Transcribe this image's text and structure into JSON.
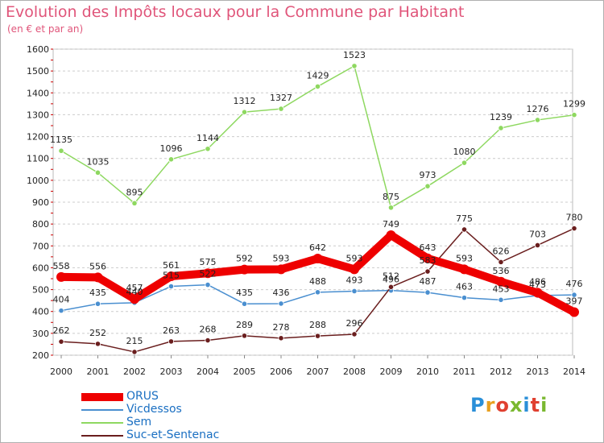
{
  "title": "Evolution des Impôts locaux pour la Commune par Habitant",
  "subtitle": "(en € et par an)",
  "logo": {
    "text": "Proxiti",
    "colors": [
      "#2a8fd8",
      "#e8a020",
      "#e04030",
      "#7ab830",
      "#2a8fd8",
      "#e04030",
      "#7ab830"
    ]
  },
  "colors": {
    "title": "#e0557a",
    "grid": "#cccccc",
    "axis_ticks": "#cc0000"
  },
  "chart_data": {
    "type": "line",
    "title": "Evolution des Impôts locaux pour la Commune par Habitant",
    "subtitle": "(en € et par an)",
    "xlabel": "",
    "ylabel": "",
    "categories": [
      "2000",
      "2001",
      "2002",
      "2003",
      "2004",
      "2005",
      "2006",
      "2007",
      "2008",
      "2009",
      "2010",
      "2011",
      "2012",
      "2013",
      "2014"
    ],
    "ylim": [
      200,
      1600
    ],
    "yticks": [
      200,
      300,
      400,
      500,
      600,
      700,
      800,
      900,
      1000,
      1100,
      1200,
      1300,
      1400,
      1500,
      1600
    ],
    "grid": "dashed horizontal",
    "legend": "bottom-left",
    "series": [
      {
        "name": "ORUS",
        "color": "#ee0000",
        "values": [
          558,
          556,
          457,
          561,
          575,
          592,
          593,
          642,
          593,
          749,
          643,
          593,
          536,
          486,
          397
        ]
      },
      {
        "name": "Vicdessos",
        "color": "#4a8fd0",
        "values": [
          404,
          435,
          440,
          515,
          522,
          435,
          436,
          488,
          493,
          496,
          487,
          463,
          453,
          473,
          476
        ]
      },
      {
        "name": "Sem",
        "color": "#8ed860",
        "values": [
          1135,
          1035,
          895,
          1096,
          1144,
          1312,
          1327,
          1429,
          1523,
          875,
          973,
          1080,
          1239,
          1276,
          1299
        ]
      },
      {
        "name": "Suc-et-Sentenac",
        "color": "#6a1e1e",
        "values": [
          262,
          252,
          215,
          263,
          268,
          289,
          278,
          288,
          296,
          512,
          583,
          775,
          626,
          703,
          780
        ]
      }
    ],
    "data_labels": [
      {
        "series": "ORUS",
        "labels": [
          "558",
          "556",
          "457",
          "561",
          "575",
          "592",
          "593",
          "642",
          "593",
          "749",
          "643",
          "593",
          "536",
          "486",
          "397"
        ]
      },
      {
        "series": "Vicdessos",
        "labels": [
          "404",
          "435",
          "440",
          "515",
          "522",
          "435",
          "436",
          "488",
          "493",
          "496",
          "487",
          "463",
          "453",
          "473",
          "476"
        ]
      },
      {
        "series": "Sem",
        "labels": [
          "1135",
          "1035",
          "895",
          "1096",
          "1144",
          "1312",
          "1327",
          "1429",
          "1523",
          "875",
          "973",
          "1080",
          "1239",
          "1276",
          "1299"
        ]
      },
      {
        "series": "Suc-et-Sentenac",
        "labels": [
          "262",
          "252",
          "215",
          "263",
          "268",
          "289",
          "278",
          "288",
          "296",
          "512",
          "583",
          "775",
          "626",
          "703",
          "780"
        ]
      }
    ]
  }
}
